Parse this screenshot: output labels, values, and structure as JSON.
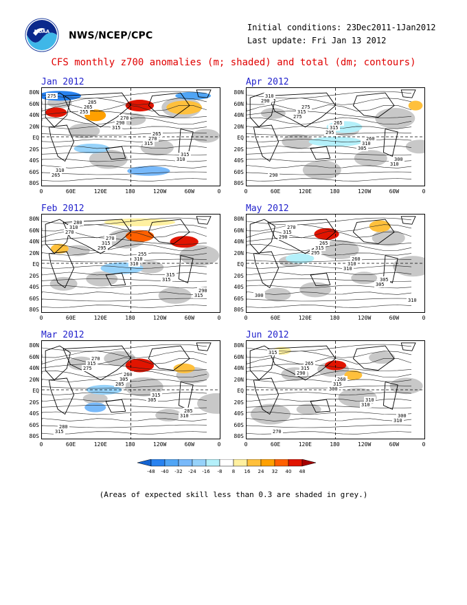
{
  "header": {
    "agency": "NWS/NCEP/CPC",
    "initial_conditions": "Initial conditions: 23Dec2011-1Jan2012",
    "last_update": "Last update: Fri Jan 13 2012",
    "title": "CFS monthly z700 anomalies (m; shaded) and total (dm; contours)"
  },
  "axes": {
    "lat_labels": [
      "80N",
      "60N",
      "40N",
      "20N",
      "EQ",
      "20S",
      "40S",
      "60S",
      "80S"
    ],
    "lon_labels": [
      "0",
      "60E",
      "120E",
      "180",
      "120W",
      "60W",
      "0"
    ]
  },
  "panels": [
    {
      "month": "Jan 2012",
      "contours": [
        "275",
        "255",
        "315",
        "315",
        "310",
        "265",
        "265",
        "290",
        "270",
        "315",
        "310",
        "285",
        "270",
        "265"
      ]
    },
    {
      "month": "Apr 2012",
      "contours": [
        "290",
        "275",
        "295",
        "305",
        "310",
        "310",
        "315",
        "315",
        "310",
        "300",
        "290",
        "275",
        "265",
        "260"
      ]
    },
    {
      "month": "Feb 2012",
      "contours": [
        "270",
        "295",
        "310",
        "315",
        "315",
        "310",
        "315",
        "310",
        "315",
        "290",
        "280",
        "270",
        "255"
      ]
    },
    {
      "month": "May 2012",
      "contours": [
        "290",
        "295",
        "310",
        "305",
        "310",
        "315",
        "315",
        "310",
        "305",
        "300",
        "270",
        "265",
        "260"
      ]
    },
    {
      "month": "Mar 2012",
      "contours": [
        "275",
        "285",
        "305",
        "310",
        "315",
        "315",
        "305",
        "315",
        "285",
        "280",
        "270",
        "260"
      ]
    },
    {
      "month": "Jun 2012",
      "contours": [
        "290",
        "300",
        "310",
        "310",
        "315",
        "315",
        "315",
        "310",
        "300",
        "270",
        "265",
        "260"
      ]
    }
  ],
  "colorbar": {
    "labels": [
      "-48",
      "-40",
      "-32",
      "-24",
      "-16",
      "-8",
      "8",
      "16",
      "24",
      "32",
      "40",
      "48"
    ],
    "colors": [
      "#1464d2",
      "#2882f0",
      "#50a5f5",
      "#78b9fa",
      "#96d2fa",
      "#b4f0fa",
      "#ffffff",
      "#fff0a0",
      "#ffc03c",
      "#ffa000",
      "#ff6000",
      "#e11400",
      "#a50000"
    ]
  },
  "footnote": "(Areas of expected skill less than 0.3 are shaded in grey.)"
}
